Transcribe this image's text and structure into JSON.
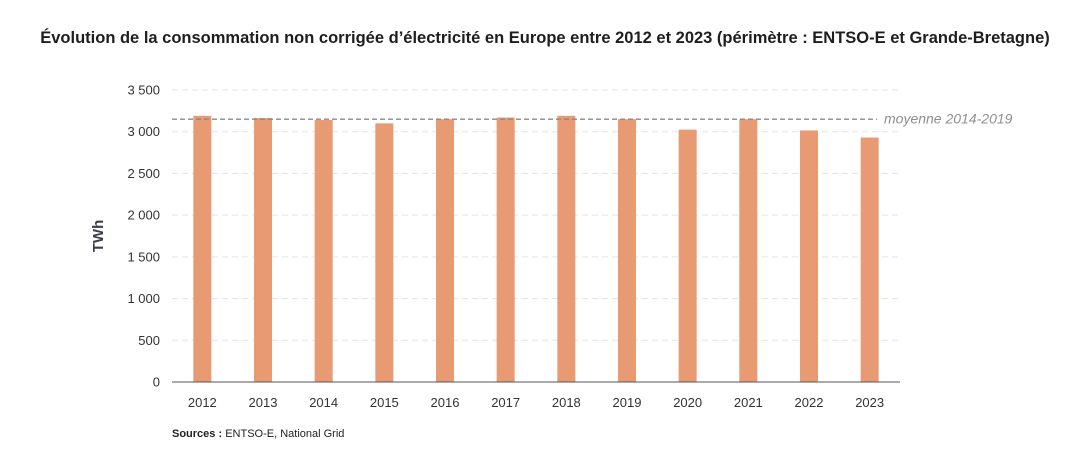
{
  "chart_data": {
    "type": "bar",
    "title": "Évolution de la consommation non corrigée d’électricité en Europe entre 2012 et 2023 (périmètre : ENTSO-E et Grande-Bretagne)",
    "xlabel": "",
    "ylabel": "TWh",
    "ylim": [
      0,
      3500
    ],
    "yticks": [
      0,
      500,
      1000,
      1500,
      2000,
      2500,
      3000,
      3500
    ],
    "ytick_labels": [
      "0",
      "500",
      "1 000",
      "1 500",
      "2 000",
      "2 500",
      "3 000",
      "3 500"
    ],
    "categories": [
      "2012",
      "2013",
      "2014",
      "2015",
      "2016",
      "2017",
      "2018",
      "2019",
      "2020",
      "2021",
      "2022",
      "2023"
    ],
    "values": [
      3190,
      3165,
      3140,
      3100,
      3150,
      3170,
      3190,
      3150,
      3025,
      3150,
      3015,
      2930
    ],
    "reference_line": {
      "label": "moyenne 2014-2019",
      "value": 3150,
      "style": "dashed"
    },
    "grid": true,
    "bar_color": "#e89a72"
  },
  "footer": {
    "sources_label": "Sources :",
    "sources_text": "ENTSO-E, National Grid"
  }
}
